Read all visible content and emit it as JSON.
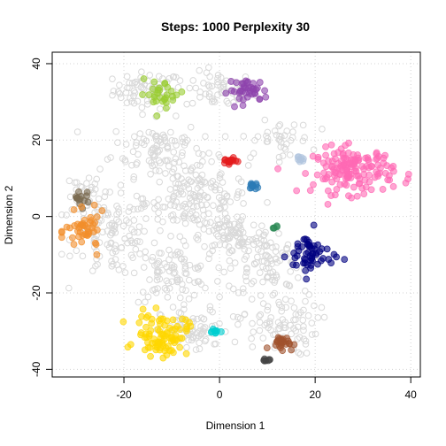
{
  "chart_data": {
    "type": "scatter",
    "title": "Steps: 1000 Perplexity 30",
    "xlabel": "Dimension 1",
    "ylabel": "Dimension 2",
    "xlim": [
      -35,
      42
    ],
    "ylim": [
      -42,
      43
    ],
    "x_ticks": [
      -20,
      0,
      20,
      40
    ],
    "y_ticks": [
      -40,
      -20,
      0,
      20,
      40
    ],
    "grid": true,
    "background_points": {
      "color": "#d9d9d9",
      "clusters": [
        {
          "center": [
            -15,
            33
          ],
          "spread": [
            6,
            4
          ],
          "count": 70
        },
        {
          "center": [
            0,
            33
          ],
          "spread": [
            6,
            4
          ],
          "count": 60
        },
        {
          "center": [
            -13,
            18
          ],
          "spread": [
            8,
            6
          ],
          "count": 90
        },
        {
          "center": [
            -5,
            5
          ],
          "spread": [
            9,
            8
          ],
          "count": 160
        },
        {
          "center": [
            -22,
            -5
          ],
          "spread": [
            7,
            9
          ],
          "count": 110
        },
        {
          "center": [
            -10,
            -15
          ],
          "spread": [
            7,
            6
          ],
          "count": 90
        },
        {
          "center": [
            3,
            -5
          ],
          "spread": [
            6,
            5
          ],
          "count": 80
        },
        {
          "center": [
            10,
            -12
          ],
          "spread": [
            7,
            7
          ],
          "count": 90
        },
        {
          "center": [
            12,
            -28
          ],
          "spread": [
            7,
            7
          ],
          "count": 90
        },
        {
          "center": [
            -5,
            -30
          ],
          "spread": [
            6,
            5
          ],
          "count": 70
        },
        {
          "center": [
            -28,
            5
          ],
          "spread": [
            3,
            6
          ],
          "count": 40
        },
        {
          "center": [
            12,
            20
          ],
          "spread": [
            6,
            4
          ],
          "count": 40
        }
      ]
    },
    "highlighted_clusters": [
      {
        "color": "#9acd32",
        "center": [
          -12,
          32
        ],
        "spread": [
          4,
          3
        ],
        "count": 30
      },
      {
        "color": "#8e44ad",
        "center": [
          6,
          33
        ],
        "spread": [
          3.5,
          2.5
        ],
        "count": 40
      },
      {
        "color": "#ff69b4",
        "center": [
          28,
          12
        ],
        "spread": [
          7,
          5
        ],
        "count": 150
      },
      {
        "color": "#b0c4de",
        "center": [
          17,
          15
        ],
        "spread": [
          1,
          1
        ],
        "count": 8
      },
      {
        "color": "#e41a1c",
        "center": [
          2,
          14.5
        ],
        "spread": [
          1.3,
          0.6
        ],
        "count": 15
      },
      {
        "color": "#2c7bb6",
        "center": [
          7,
          8
        ],
        "spread": [
          1,
          1
        ],
        "count": 12
      },
      {
        "color": "#7a6a50",
        "center": [
          -29,
          5
        ],
        "spread": [
          1.5,
          2
        ],
        "count": 14
      },
      {
        "color": "#f28e2b",
        "center": [
          -28,
          -4
        ],
        "spread": [
          3.5,
          4
        ],
        "count": 45
      },
      {
        "color": "#2e8b57",
        "center": [
          11,
          -3
        ],
        "spread": [
          1,
          0.5
        ],
        "count": 5
      },
      {
        "color": "#000080",
        "center": [
          19,
          -10
        ],
        "spread": [
          4,
          5
        ],
        "count": 55
      },
      {
        "color": "#ffd700",
        "center": [
          -12,
          -31
        ],
        "spread": [
          4.5,
          4.5
        ],
        "count": 90
      },
      {
        "color": "#00ced1",
        "center": [
          -1,
          -30
        ],
        "spread": [
          1.5,
          0.6
        ],
        "count": 10
      },
      {
        "color": "#a0522d",
        "center": [
          13,
          -33
        ],
        "spread": [
          2,
          1.5
        ],
        "count": 25
      },
      {
        "color": "#444444",
        "center": [
          9,
          -38
        ],
        "spread": [
          1.2,
          0.8
        ],
        "count": 8
      }
    ]
  }
}
